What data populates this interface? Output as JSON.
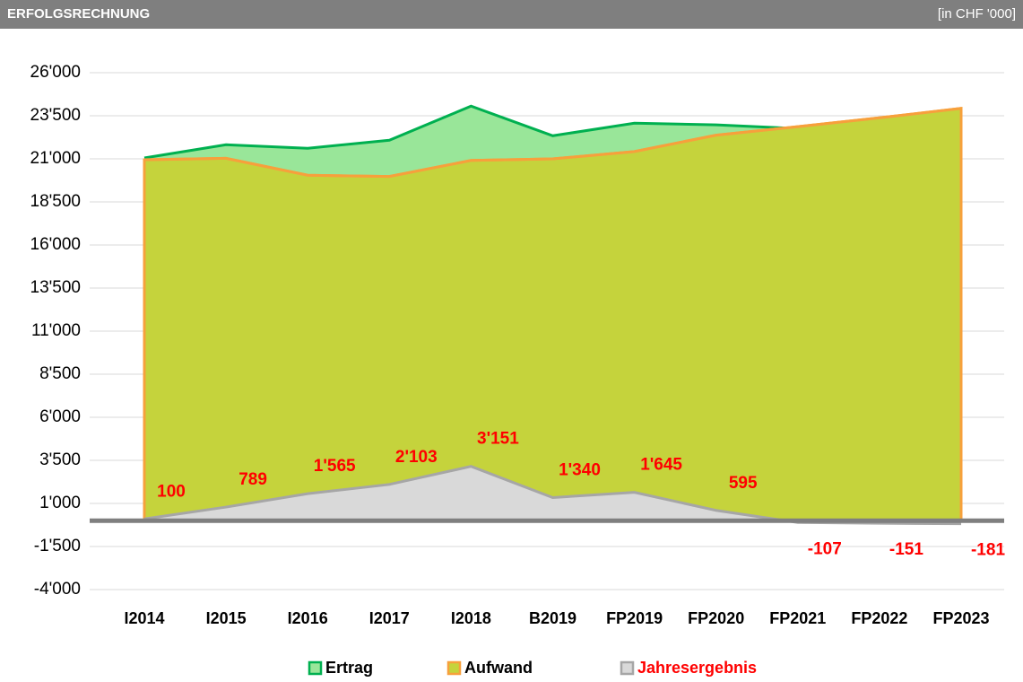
{
  "header": {
    "title": "ERFOLGSRECHNUNG",
    "unit": "[in CHF '000]"
  },
  "chart_data": {
    "type": "area",
    "categories": [
      "I2014",
      "I2015",
      "I2016",
      "I2017",
      "I2018",
      "B2019",
      "FP2019",
      "FP2020",
      "FP2021",
      "FP2022",
      "FP2023"
    ],
    "series": [
      {
        "name": "Ertrag",
        "color": "#00b050",
        "fill": "#99e699",
        "values": [
          21050,
          21820,
          21615,
          22080,
          24060,
          22340,
          23070,
          22970,
          22760,
          23230,
          23750
        ]
      },
      {
        "name": "Aufwand",
        "color": "#f7a03c",
        "fill": "#c5d33c",
        "values": [
          20950,
          21031,
          20050,
          19977,
          20909,
          21000,
          21425,
          22375,
          22867,
          23381,
          23931
        ]
      },
      {
        "name": "Jahresergebnis",
        "color": "#a6a6a6",
        "fill": "#d9d9d9",
        "values": [
          100,
          789,
          1565,
          2103,
          3151,
          1340,
          1645,
          595,
          -107,
          -151,
          -181
        ],
        "value_labels": [
          "100",
          "789",
          "1'565",
          "2'103",
          "3'151",
          "1'340",
          "1'645",
          "595",
          "-107",
          "-151",
          "-181"
        ],
        "label_color": "#ff0000"
      }
    ],
    "ylim": [
      -4000,
      26000
    ],
    "yticks": [
      {
        "value": -4000,
        "label": "-4'000"
      },
      {
        "value": -1500,
        "label": "-1'500"
      },
      {
        "value": 1000,
        "label": "1'000"
      },
      {
        "value": 3500,
        "label": "3'500"
      },
      {
        "value": 6000,
        "label": "6'000"
      },
      {
        "value": 8500,
        "label": "8'500"
      },
      {
        "value": 11000,
        "label": "11'000"
      },
      {
        "value": 13500,
        "label": "13'500"
      },
      {
        "value": 16000,
        "label": "16'000"
      },
      {
        "value": 18500,
        "label": "18'500"
      },
      {
        "value": 21000,
        "label": "21'000"
      },
      {
        "value": 23500,
        "label": "23'500"
      },
      {
        "value": 26000,
        "label": "26'000"
      }
    ],
    "grid": true
  }
}
